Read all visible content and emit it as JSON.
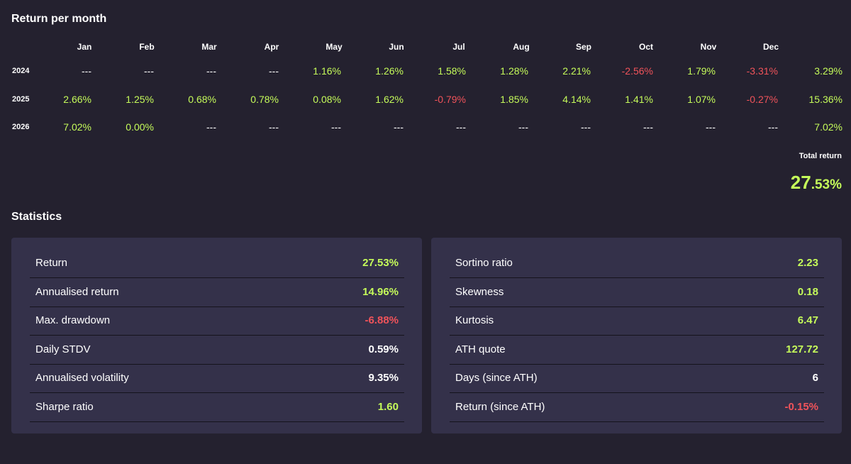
{
  "return_per_month": {
    "title": "Return per month",
    "months": [
      "Jan",
      "Feb",
      "Mar",
      "Apr",
      "May",
      "Jun",
      "Jul",
      "Aug",
      "Sep",
      "Oct",
      "Nov",
      "Dec"
    ],
    "rows": [
      {
        "year": "2024",
        "values": [
          "---",
          "---",
          "---",
          "---",
          "1.16%",
          "1.26%",
          "1.58%",
          "1.28%",
          "2.21%",
          "-2.56%",
          "1.79%",
          "-3.31%"
        ],
        "total": "3.29%"
      },
      {
        "year": "2025",
        "values": [
          "2.66%",
          "1.25%",
          "0.68%",
          "0.78%",
          "0.08%",
          "1.62%",
          "-0.79%",
          "1.85%",
          "4.14%",
          "1.41%",
          "1.07%",
          "-0.27%"
        ],
        "total": "15.36%"
      },
      {
        "year": "2026",
        "values": [
          "7.02%",
          "0.00%",
          "---",
          "---",
          "---",
          "---",
          "---",
          "---",
          "---",
          "---",
          "---",
          "---"
        ],
        "total": "7.02%"
      }
    ],
    "total_return_label": "Total return",
    "total_return_int": "27",
    "total_return_dec": ".53%"
  },
  "statistics": {
    "title": "Statistics",
    "left": [
      {
        "label": "Return",
        "value": "27.53%",
        "tone": "pos"
      },
      {
        "label": "Annualised return",
        "value": "14.96%",
        "tone": "pos"
      },
      {
        "label": "Max. drawdown",
        "value": "-6.88%",
        "tone": "neg"
      },
      {
        "label": "Daily STDV",
        "value": "0.59%",
        "tone": "neu"
      },
      {
        "label": "Annualised volatility",
        "value": "9.35%",
        "tone": "neu"
      },
      {
        "label": "Sharpe ratio",
        "value": "1.60",
        "tone": "pos"
      }
    ],
    "right": [
      {
        "label": "Sortino ratio",
        "value": "2.23",
        "tone": "pos"
      },
      {
        "label": "Skewness",
        "value": "0.18",
        "tone": "pos"
      },
      {
        "label": "Kurtosis",
        "value": "6.47",
        "tone": "pos"
      },
      {
        "label": "ATH quote",
        "value": "127.72",
        "tone": "pos"
      },
      {
        "label": "Days (since ATH)",
        "value": "6",
        "tone": "neu"
      },
      {
        "label": "Return (since ATH)",
        "value": "-0.15%",
        "tone": "neg"
      }
    ]
  },
  "colors": {
    "background": "#24212f",
    "panel": "#34314a",
    "positive": "#c5fb5a",
    "negative": "#f0535a",
    "neutral": "#ffffff"
  }
}
